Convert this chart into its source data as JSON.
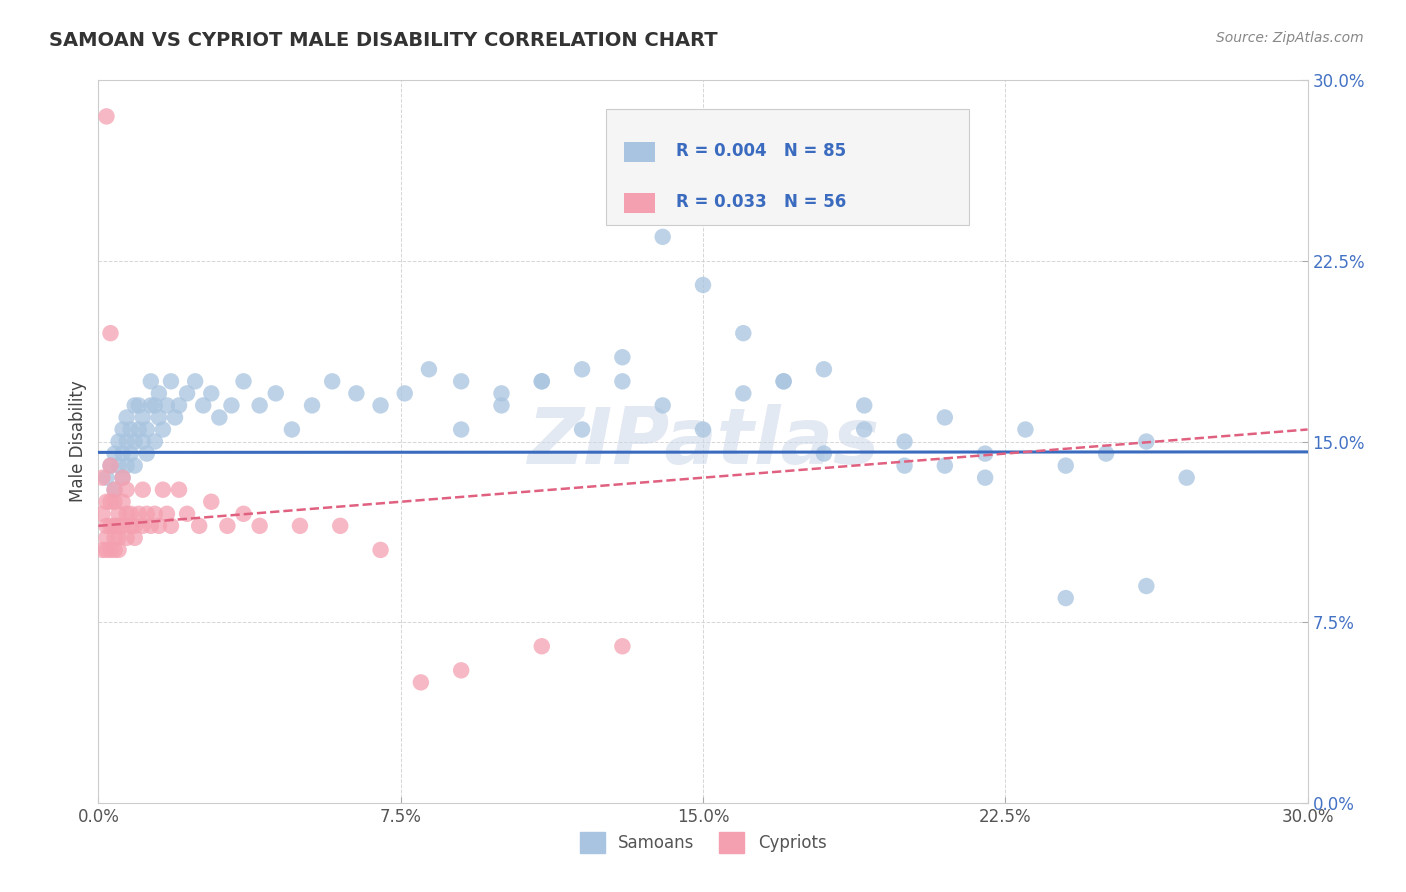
{
  "title": "SAMOAN VS CYPRIOT MALE DISABILITY CORRELATION CHART",
  "source": "Source: ZipAtlas.com",
  "ylabel": "Male Disability",
  "xlim": [
    0.0,
    0.3
  ],
  "ylim": [
    0.0,
    0.3
  ],
  "xticks": [
    0.0,
    0.075,
    0.15,
    0.225,
    0.3
  ],
  "yticks": [
    0.0,
    0.075,
    0.15,
    0.225,
    0.3
  ],
  "xtick_labels": [
    "0.0%",
    "7.5%",
    "15.0%",
    "22.5%",
    "30.0%"
  ],
  "ytick_labels": [
    "0.0%",
    "7.5%",
    "15.0%",
    "22.5%",
    "30.0%"
  ],
  "samoan_color": "#a8c4e0",
  "cypriot_color": "#f4a0b0",
  "samoan_R": 0.004,
  "samoan_N": 85,
  "cypriot_R": 0.033,
  "cypriot_N": 56,
  "samoan_line_color": "#3a6bbf",
  "cypriot_line_color": "#e06080",
  "legend_label_samoan": "Samoans",
  "legend_label_cypriot": "Cypriots",
  "watermark": "ZIPatlas",
  "background_color": "#ffffff",
  "grid_color": "#cccccc",
  "title_color": "#333333",
  "source_color": "#888888",
  "ylabel_color": "#444444",
  "ytick_color": "#4472c4",
  "xtick_color": "#555555",
  "samoan_x": [
    0.002,
    0.003,
    0.004,
    0.004,
    0.005,
    0.005,
    0.006,
    0.006,
    0.006,
    0.007,
    0.007,
    0.007,
    0.008,
    0.008,
    0.009,
    0.009,
    0.009,
    0.01,
    0.01,
    0.011,
    0.011,
    0.012,
    0.012,
    0.013,
    0.013,
    0.014,
    0.014,
    0.015,
    0.015,
    0.016,
    0.017,
    0.018,
    0.019,
    0.02,
    0.022,
    0.024,
    0.026,
    0.028,
    0.03,
    0.033,
    0.036,
    0.04,
    0.044,
    0.048,
    0.053,
    0.058,
    0.064,
    0.07,
    0.076,
    0.082,
    0.09,
    0.1,
    0.11,
    0.12,
    0.13,
    0.14,
    0.15,
    0.16,
    0.17,
    0.18,
    0.19,
    0.2,
    0.21,
    0.22,
    0.23,
    0.24,
    0.25,
    0.26,
    0.2,
    0.22,
    0.24,
    0.26,
    0.18,
    0.19,
    0.21,
    0.17,
    0.16,
    0.15,
    0.14,
    0.13,
    0.12,
    0.11,
    0.1,
    0.09,
    0.27
  ],
  "samoan_y": [
    0.135,
    0.14,
    0.13,
    0.145,
    0.14,
    0.15,
    0.135,
    0.145,
    0.155,
    0.14,
    0.15,
    0.16,
    0.145,
    0.155,
    0.14,
    0.15,
    0.165,
    0.155,
    0.165,
    0.15,
    0.16,
    0.145,
    0.155,
    0.165,
    0.175,
    0.15,
    0.165,
    0.16,
    0.17,
    0.155,
    0.165,
    0.175,
    0.16,
    0.165,
    0.17,
    0.175,
    0.165,
    0.17,
    0.16,
    0.165,
    0.175,
    0.165,
    0.17,
    0.155,
    0.165,
    0.175,
    0.17,
    0.165,
    0.17,
    0.18,
    0.175,
    0.17,
    0.175,
    0.18,
    0.175,
    0.165,
    0.155,
    0.17,
    0.175,
    0.18,
    0.165,
    0.15,
    0.16,
    0.145,
    0.155,
    0.14,
    0.145,
    0.15,
    0.14,
    0.135,
    0.085,
    0.09,
    0.145,
    0.155,
    0.14,
    0.175,
    0.195,
    0.215,
    0.235,
    0.185,
    0.155,
    0.175,
    0.165,
    0.155,
    0.135
  ],
  "cypriot_x": [
    0.001,
    0.001,
    0.001,
    0.002,
    0.002,
    0.002,
    0.002,
    0.003,
    0.003,
    0.003,
    0.003,
    0.004,
    0.004,
    0.004,
    0.004,
    0.004,
    0.005,
    0.005,
    0.005,
    0.005,
    0.006,
    0.006,
    0.006,
    0.007,
    0.007,
    0.007,
    0.008,
    0.008,
    0.009,
    0.009,
    0.01,
    0.011,
    0.011,
    0.012,
    0.013,
    0.014,
    0.015,
    0.016,
    0.017,
    0.018,
    0.02,
    0.022,
    0.025,
    0.028,
    0.032,
    0.036,
    0.04,
    0.05,
    0.06,
    0.07,
    0.08,
    0.09,
    0.11,
    0.13,
    0.002,
    0.003
  ],
  "cypriot_y": [
    0.12,
    0.135,
    0.105,
    0.11,
    0.125,
    0.115,
    0.105,
    0.14,
    0.125,
    0.115,
    0.105,
    0.13,
    0.115,
    0.125,
    0.105,
    0.11,
    0.12,
    0.115,
    0.105,
    0.11,
    0.125,
    0.115,
    0.135,
    0.13,
    0.12,
    0.11,
    0.115,
    0.12,
    0.115,
    0.11,
    0.12,
    0.115,
    0.13,
    0.12,
    0.115,
    0.12,
    0.115,
    0.13,
    0.12,
    0.115,
    0.13,
    0.12,
    0.115,
    0.125,
    0.115,
    0.12,
    0.115,
    0.115,
    0.115,
    0.105,
    0.05,
    0.055,
    0.065,
    0.065,
    0.285,
    0.195
  ],
  "samoan_regression": [
    0.0,
    0.3,
    0.1455,
    0.1457
  ],
  "cypriot_regression": [
    0.0,
    0.3,
    0.115,
    0.155
  ]
}
